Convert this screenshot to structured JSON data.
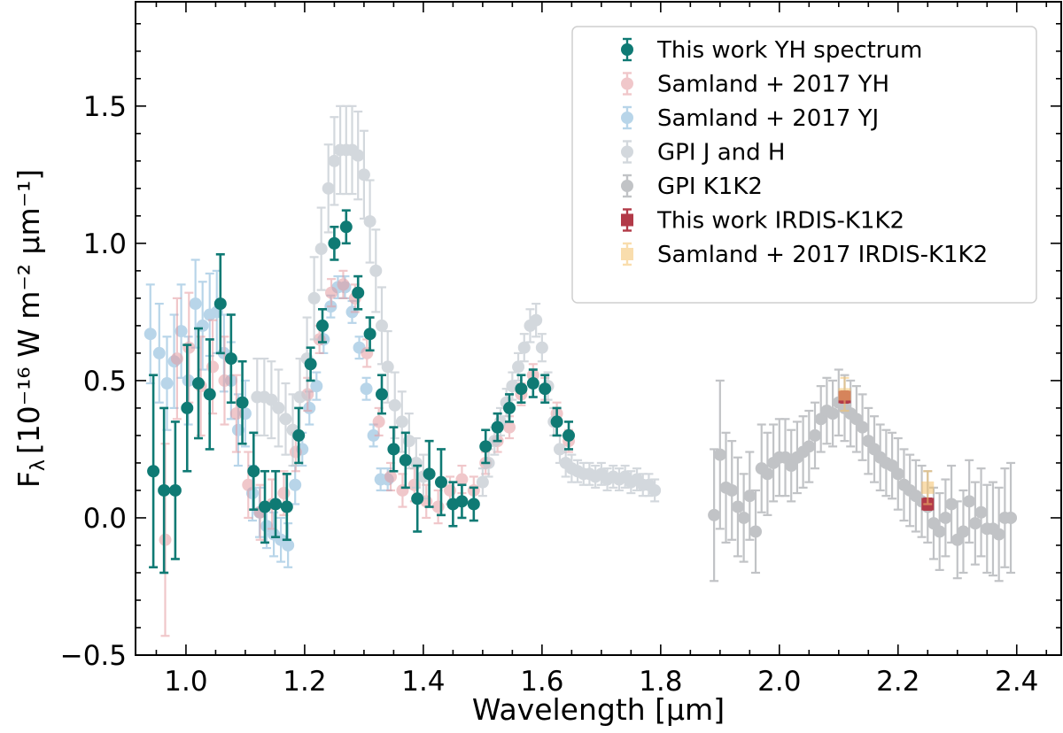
{
  "chart_data": {
    "type": "scatter",
    "xlabel": "Wavelength [μm]",
    "ylabel": "F",
    "ylabel_sub": "λ",
    "ylabel_unit": "[10⁻¹⁶ W m⁻² μm⁻¹]",
    "xlim": [
      0.915,
      2.475
    ],
    "ylim": [
      -0.5,
      1.88
    ],
    "xticks": [
      "1.0",
      "1.2",
      "1.4",
      "1.6",
      "1.8",
      "2.0",
      "2.2",
      "2.4"
    ],
    "yticks": [
      "−0.5",
      "0.0",
      "0.5",
      "1.0",
      "1.5"
    ],
    "legend_position": "upper-right",
    "series": [
      {
        "name": "Samland + 2017 YJ",
        "color": "#7fb3d8",
        "marker": "circle",
        "opacity": 0.55,
        "x": [
          0.94,
          0.955,
          0.968,
          0.98,
          0.992,
          1.004,
          1.016,
          1.028,
          1.04,
          1.052,
          1.064,
          1.076,
          1.088,
          1.1,
          1.112,
          1.124,
          1.136,
          1.148,
          1.16,
          1.172,
          1.184,
          1.196,
          1.208,
          1.22,
          1.232,
          1.244,
          1.256,
          1.268,
          1.28,
          1.292,
          1.304,
          1.316,
          1.328,
          1.34
        ],
        "y": [
          0.67,
          0.6,
          0.49,
          0.57,
          0.68,
          0.5,
          0.78,
          0.7,
          0.74,
          0.75,
          0.6,
          0.5,
          0.32,
          0.38,
          0.09,
          0.02,
          -0.03,
          -0.06,
          -0.08,
          -0.1,
          0.12,
          0.25,
          0.4,
          0.48,
          0.65,
          0.77,
          0.84,
          0.84,
          0.75,
          0.62,
          0.47,
          0.3,
          0.14,
          0.14
        ],
        "err": [
          0.18,
          0.18,
          0.17,
          0.17,
          0.17,
          0.16,
          0.16,
          0.16,
          0.15,
          0.15,
          0.14,
          0.14,
          0.13,
          0.12,
          0.1,
          0.09,
          0.08,
          0.08,
          0.08,
          0.08,
          0.07,
          0.06,
          0.06,
          0.05,
          0.05,
          0.04,
          0.04,
          0.04,
          0.04,
          0.04,
          0.04,
          0.04,
          0.04,
          0.04
        ]
      },
      {
        "name": "Samland + 2017 YH",
        "color": "#e59a9f",
        "marker": "circle",
        "opacity": 0.55,
        "x": [
          0.965,
          0.985,
          1.005,
          1.025,
          1.045,
          1.065,
          1.085,
          1.105,
          1.125,
          1.145,
          1.165,
          1.185,
          1.205,
          1.225,
          1.245,
          1.265,
          1.285,
          1.305,
          1.325,
          1.345,
          1.365,
          1.385,
          1.405,
          1.425,
          1.445,
          1.465,
          1.485,
          1.505,
          1.525,
          1.545,
          1.565,
          1.585,
          1.605,
          1.625,
          1.645
        ],
        "y": [
          -0.08,
          0.58,
          0.62,
          0.48,
          0.55,
          0.5,
          0.38,
          0.12,
          0.02,
          0.05,
          0.09,
          0.24,
          0.45,
          0.65,
          0.82,
          0.85,
          0.8,
          0.6,
          0.35,
          0.15,
          0.1,
          0.12,
          0.06,
          0.04,
          0.1,
          0.14,
          0.1,
          0.2,
          0.28,
          0.33,
          0.45,
          0.52,
          0.47,
          0.38,
          0.28
        ],
        "err": [
          0.35,
          0.22,
          0.2,
          0.18,
          0.17,
          0.16,
          0.14,
          0.12,
          0.1,
          0.09,
          0.08,
          0.07,
          0.06,
          0.05,
          0.05,
          0.05,
          0.05,
          0.05,
          0.05,
          0.05,
          0.06,
          0.06,
          0.06,
          0.06,
          0.05,
          0.05,
          0.05,
          0.04,
          0.04,
          0.04,
          0.04,
          0.04,
          0.04,
          0.04,
          0.04
        ]
      },
      {
        "name": "GPI J and H",
        "color": "#c5cbd2",
        "marker": "circle",
        "opacity": 0.75,
        "x": [
          1.12,
          1.132,
          1.144,
          1.156,
          1.168,
          1.18,
          1.192,
          1.204,
          1.216,
          1.228,
          1.24,
          1.25,
          1.26,
          1.27,
          1.28,
          1.29,
          1.3,
          1.31,
          1.32,
          1.33,
          1.34,
          1.352,
          1.364,
          1.376,
          1.388,
          1.4,
          1.5,
          1.51,
          1.52,
          1.53,
          1.54,
          1.55,
          1.56,
          1.57,
          1.58,
          1.59,
          1.6,
          1.61,
          1.62,
          1.63,
          1.64,
          1.65,
          1.66,
          1.67,
          1.68,
          1.69,
          1.7,
          1.71,
          1.72,
          1.73,
          1.74,
          1.75,
          1.76,
          1.77,
          1.78,
          1.79
        ],
        "y": [
          0.44,
          0.44,
          0.43,
          0.4,
          0.36,
          0.32,
          0.44,
          0.58,
          0.8,
          0.98,
          1.2,
          1.3,
          1.34,
          1.34,
          1.34,
          1.32,
          1.25,
          1.08,
          0.9,
          0.7,
          0.55,
          0.41,
          0.35,
          0.28,
          0.2,
          0.15,
          0.13,
          0.2,
          0.28,
          0.35,
          0.42,
          0.48,
          0.55,
          0.62,
          0.7,
          0.72,
          0.62,
          0.48,
          0.35,
          0.25,
          0.2,
          0.18,
          0.17,
          0.16,
          0.16,
          0.15,
          0.16,
          0.14,
          0.15,
          0.14,
          0.15,
          0.13,
          0.14,
          0.12,
          0.12,
          0.1
        ],
        "err": [
          0.14,
          0.14,
          0.14,
          0.14,
          0.13,
          0.13,
          0.14,
          0.15,
          0.15,
          0.15,
          0.16,
          0.16,
          0.16,
          0.16,
          0.16,
          0.16,
          0.16,
          0.15,
          0.15,
          0.14,
          0.13,
          0.12,
          0.11,
          0.1,
          0.09,
          0.08,
          0.05,
          0.05,
          0.05,
          0.05,
          0.05,
          0.05,
          0.05,
          0.05,
          0.06,
          0.06,
          0.05,
          0.05,
          0.05,
          0.05,
          0.05,
          0.05,
          0.04,
          0.04,
          0.04,
          0.04,
          0.04,
          0.04,
          0.04,
          0.04,
          0.04,
          0.04,
          0.04,
          0.04,
          0.04,
          0.04
        ]
      },
      {
        "name": "GPI K1K2",
        "color": "#8f9398",
        "marker": "circle",
        "opacity": 0.55,
        "x": [
          1.89,
          1.9,
          1.91,
          1.92,
          1.93,
          1.94,
          1.95,
          1.96,
          1.97,
          1.98,
          1.99,
          2.0,
          2.01,
          2.02,
          2.03,
          2.04,
          2.05,
          2.06,
          2.07,
          2.08,
          2.09,
          2.1,
          2.11,
          2.12,
          2.13,
          2.14,
          2.15,
          2.16,
          2.17,
          2.18,
          2.19,
          2.2,
          2.21,
          2.22,
          2.23,
          2.24,
          2.25,
          2.26,
          2.27,
          2.28,
          2.29,
          2.3,
          2.31,
          2.32,
          2.33,
          2.34,
          2.35,
          2.36,
          2.37,
          2.38,
          2.39
        ],
        "y": [
          0.01,
          0.23,
          0.11,
          0.1,
          0.04,
          0.0,
          0.08,
          -0.05,
          0.18,
          0.16,
          0.2,
          0.22,
          0.22,
          0.19,
          0.22,
          0.24,
          0.26,
          0.3,
          0.36,
          0.39,
          0.38,
          0.42,
          0.4,
          0.38,
          0.36,
          0.33,
          0.28,
          0.25,
          0.22,
          0.2,
          0.19,
          0.16,
          0.12,
          0.1,
          0.08,
          0.06,
          0.04,
          -0.02,
          -0.05,
          0.0,
          0.05,
          -0.08,
          -0.05,
          0.06,
          -0.02,
          0.02,
          -0.04,
          -0.04,
          -0.06,
          0.0,
          0.0
        ],
        "err": [
          0.24,
          0.27,
          0.2,
          0.18,
          0.18,
          0.16,
          0.16,
          0.15,
          0.16,
          0.15,
          0.14,
          0.14,
          0.14,
          0.13,
          0.13,
          0.13,
          0.13,
          0.12,
          0.12,
          0.12,
          0.12,
          0.12,
          0.12,
          0.12,
          0.12,
          0.12,
          0.12,
          0.12,
          0.12,
          0.12,
          0.12,
          0.13,
          0.13,
          0.13,
          0.13,
          0.13,
          0.13,
          0.13,
          0.14,
          0.14,
          0.14,
          0.14,
          0.15,
          0.15,
          0.15,
          0.16,
          0.16,
          0.17,
          0.17,
          0.18,
          0.2
        ]
      },
      {
        "name": "This work YH spectrum",
        "color": "#0f7a74",
        "marker": "circle",
        "opacity": 1,
        "x": [
          0.945,
          0.963,
          0.982,
          1.002,
          1.021,
          1.04,
          1.058,
          1.076,
          1.095,
          1.114,
          1.133,
          1.151,
          1.17,
          1.19,
          1.21,
          1.23,
          1.25,
          1.27,
          1.29,
          1.31,
          1.33,
          1.35,
          1.37,
          1.39,
          1.41,
          1.43,
          1.45,
          1.465,
          1.485,
          1.505,
          1.525,
          1.545,
          1.565,
          1.585,
          1.605,
          1.625,
          1.645
        ],
        "y": [
          0.17,
          0.1,
          0.1,
          0.4,
          0.49,
          0.45,
          0.78,
          0.58,
          0.42,
          0.17,
          0.04,
          0.05,
          0.04,
          0.3,
          0.56,
          0.7,
          1.0,
          1.06,
          0.82,
          0.67,
          0.45,
          0.25,
          0.21,
          0.07,
          0.16,
          0.13,
          0.05,
          0.06,
          0.05,
          0.26,
          0.33,
          0.4,
          0.47,
          0.49,
          0.47,
          0.35,
          0.3
        ],
        "err": [
          0.35,
          0.3,
          0.25,
          0.23,
          0.2,
          0.2,
          0.18,
          0.16,
          0.15,
          0.14,
          0.13,
          0.12,
          0.12,
          0.1,
          0.06,
          0.06,
          0.06,
          0.06,
          0.06,
          0.06,
          0.07,
          0.08,
          0.1,
          0.12,
          0.12,
          0.12,
          0.08,
          0.06,
          0.06,
          0.06,
          0.05,
          0.05,
          0.05,
          0.05,
          0.05,
          0.05,
          0.05
        ]
      },
      {
        "name": "This work IRDIS-K1K2",
        "color": "#b23a48",
        "marker": "square",
        "opacity": 1,
        "x": [
          2.11,
          2.25
        ],
        "y": [
          0.44,
          0.05
        ],
        "err": [
          0.02,
          0.02
        ]
      },
      {
        "name": "Samland + 2017 IRDIS-K1K2",
        "color": "#f5c26b",
        "marker": "square",
        "opacity": 0.55,
        "x": [
          2.11,
          2.25
        ],
        "y": [
          0.45,
          0.11
        ],
        "err": [
          0.06,
          0.06
        ]
      }
    ],
    "legend_order": [
      "This work YH spectrum",
      "Samland + 2017 YH",
      "Samland + 2017 YJ",
      "GPI J and H",
      "GPI K1K2",
      "This work IRDIS-K1K2",
      "Samland + 2017 IRDIS-K1K2"
    ]
  }
}
